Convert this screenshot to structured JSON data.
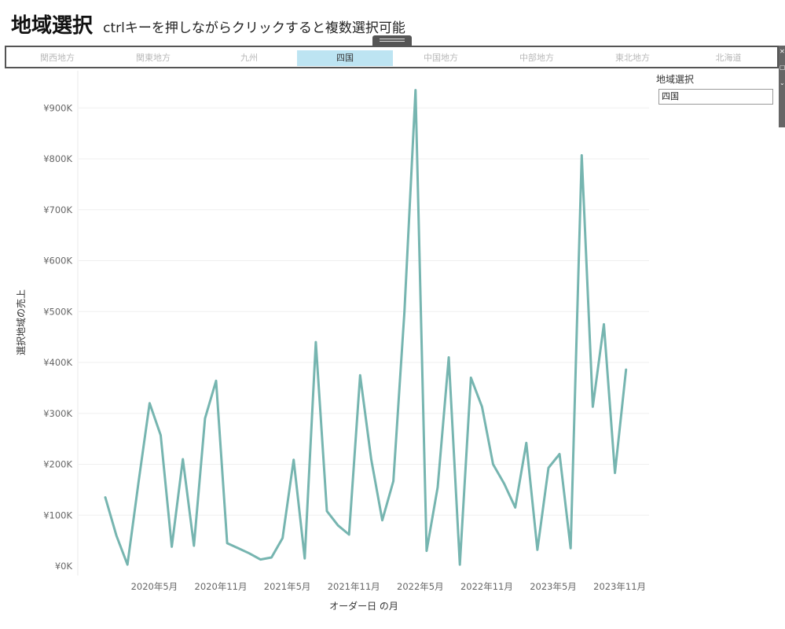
{
  "header": {
    "title": "地域選択",
    "subtitle": "ctrlキーを押しながらクリックすると複数選択可能"
  },
  "filter": {
    "items": [
      {
        "label": "関西地方",
        "selected": false
      },
      {
        "label": "関東地方",
        "selected": false
      },
      {
        "label": "九州",
        "selected": false
      },
      {
        "label": "四国",
        "selected": true
      },
      {
        "label": "中国地方",
        "selected": false
      },
      {
        "label": "中部地方",
        "selected": false
      },
      {
        "label": "東北地方",
        "selected": false
      },
      {
        "label": "北海道",
        "selected": false
      }
    ]
  },
  "legend": {
    "title": "地域選択",
    "value": "四国"
  },
  "colors": {
    "line": "#76b5b0",
    "selected_bg": "#bde4f2",
    "frame": "#555555"
  },
  "chart_data": {
    "type": "line",
    "xlabel": "オーダー日 の月",
    "ylabel": "選択地域の売上",
    "ylim": [
      0,
      950000
    ],
    "yticks": [
      0,
      100000,
      200000,
      300000,
      400000,
      500000,
      600000,
      700000,
      800000,
      900000
    ],
    "ytick_labels": [
      "¥0K",
      "¥100K",
      "¥200K",
      "¥300K",
      "¥400K",
      "¥500K",
      "¥600K",
      "¥700K",
      "¥800K",
      "¥900K"
    ],
    "x_ticks": [
      {
        "index": 4,
        "label": "2020年5月"
      },
      {
        "index": 10,
        "label": "2020年11月"
      },
      {
        "index": 16,
        "label": "2021年5月"
      },
      {
        "index": 22,
        "label": "2021年11月"
      },
      {
        "index": 28,
        "label": "2022年5月"
      },
      {
        "index": 34,
        "label": "2022年11月"
      },
      {
        "index": 40,
        "label": "2023年5月"
      },
      {
        "index": 46,
        "label": "2023年11月"
      }
    ],
    "grid": true,
    "series": [
      {
        "x": [
          "2020-01",
          "2020-02",
          "2020-03",
          "2020-04",
          "2020-05",
          "2020-06",
          "2020-07",
          "2020-08",
          "2020-09",
          "2020-10",
          "2020-11",
          "2020-12",
          "2021-01",
          "2021-02",
          "2021-03",
          "2021-04",
          "2021-05",
          "2021-06",
          "2021-07",
          "2021-08",
          "2021-09",
          "2021-10",
          "2021-11",
          "2021-12",
          "2022-01",
          "2022-02",
          "2022-03",
          "2022-04",
          "2022-05",
          "2022-06",
          "2022-07",
          "2022-08",
          "2022-09",
          "2022-10",
          "2022-11",
          "2022-12",
          "2023-01",
          "2023-02",
          "2023-03",
          "2023-04",
          "2023-05",
          "2023-06",
          "2023-07",
          "2023-08",
          "2023-09",
          "2023-10",
          "2023-11",
          "2023-12"
        ],
        "values": [
          135000,
          60000,
          3000,
          165000,
          320000,
          257000,
          38000,
          210000,
          40000,
          290000,
          364000,
          45000,
          35000,
          25000,
          13000,
          17000,
          55000,
          209000,
          15000,
          440000,
          108000,
          80000,
          62000,
          375000,
          210000,
          90000,
          167000,
          500000,
          935000,
          30000,
          155000,
          410000,
          3000,
          370000,
          313000,
          200000,
          162000,
          115000,
          242000,
          32000,
          193000,
          220000,
          35000,
          807000,
          313000,
          475000,
          183000,
          386000
        ]
      }
    ]
  }
}
